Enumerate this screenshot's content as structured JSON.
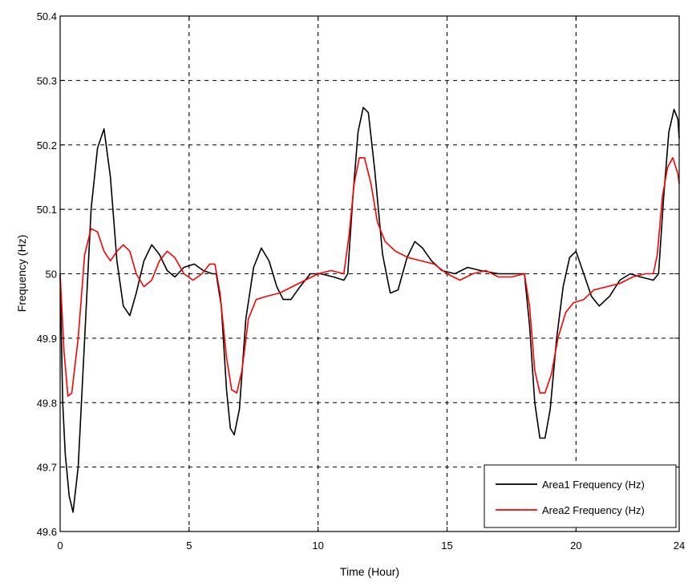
{
  "chart_data": {
    "type": "line",
    "xlabel": "Time (Hour)",
    "ylabel": "Frequency (Hz)",
    "xlim": [
      0,
      24
    ],
    "ylim": [
      49.6,
      50.4
    ],
    "xticks": [
      0,
      5,
      10,
      15,
      20,
      24
    ],
    "xtick_labels": [
      "0",
      "5",
      "10",
      "15",
      "20",
      "24"
    ],
    "yticks": [
      49.6,
      49.7,
      49.8,
      49.9,
      50.0,
      50.1,
      50.2,
      50.3,
      50.4
    ],
    "ytick_labels": [
      "49.6",
      "49.7",
      "49.8",
      "49.9",
      "50",
      "50.1",
      "50.2",
      "50.3",
      "50.4"
    ],
    "grid": true,
    "legend_position": "bottom-right",
    "series": [
      {
        "name": "Area1 Frequency (Hz)",
        "color": "#000000",
        "points": [
          [
            0.0,
            50.0
          ],
          [
            0.1,
            49.8
          ],
          [
            0.2,
            49.72
          ],
          [
            0.35,
            49.655
          ],
          [
            0.5,
            49.63
          ],
          [
            0.7,
            49.7
          ],
          [
            0.95,
            49.9
          ],
          [
            1.2,
            50.1
          ],
          [
            1.45,
            50.195
          ],
          [
            1.7,
            50.225
          ],
          [
            1.95,
            50.15
          ],
          [
            2.2,
            50.02
          ],
          [
            2.45,
            49.95
          ],
          [
            2.7,
            49.935
          ],
          [
            2.95,
            49.97
          ],
          [
            3.25,
            50.02
          ],
          [
            3.55,
            50.045
          ],
          [
            3.85,
            50.03
          ],
          [
            4.15,
            50.005
          ],
          [
            4.45,
            49.995
          ],
          [
            4.8,
            50.01
          ],
          [
            5.2,
            50.015
          ],
          [
            5.55,
            50.005
          ],
          [
            5.9,
            50.0
          ],
          [
            6.05,
            50.0
          ],
          [
            6.25,
            49.95
          ],
          [
            6.45,
            49.82
          ],
          [
            6.6,
            49.76
          ],
          [
            6.75,
            49.75
          ],
          [
            6.95,
            49.79
          ],
          [
            7.2,
            49.93
          ],
          [
            7.5,
            50.01
          ],
          [
            7.8,
            50.04
          ],
          [
            8.1,
            50.02
          ],
          [
            8.4,
            49.98
          ],
          [
            8.65,
            49.96
          ],
          [
            8.95,
            49.96
          ],
          [
            9.3,
            49.98
          ],
          [
            9.7,
            50.0
          ],
          [
            10.1,
            50.0
          ],
          [
            10.6,
            49.995
          ],
          [
            11.0,
            49.99
          ],
          [
            11.15,
            50.0
          ],
          [
            11.35,
            50.12
          ],
          [
            11.55,
            50.22
          ],
          [
            11.75,
            50.258
          ],
          [
            11.95,
            50.25
          ],
          [
            12.2,
            50.16
          ],
          [
            12.5,
            50.03
          ],
          [
            12.8,
            49.97
          ],
          [
            13.1,
            49.975
          ],
          [
            13.45,
            50.025
          ],
          [
            13.75,
            50.05
          ],
          [
            14.05,
            50.04
          ],
          [
            14.4,
            50.02
          ],
          [
            14.8,
            50.005
          ],
          [
            15.3,
            50.0
          ],
          [
            15.8,
            50.01
          ],
          [
            16.3,
            50.005
          ],
          [
            17.0,
            50.0
          ],
          [
            18.0,
            50.0
          ],
          [
            18.2,
            49.92
          ],
          [
            18.4,
            49.8
          ],
          [
            18.6,
            49.745
          ],
          [
            18.8,
            49.745
          ],
          [
            19.0,
            49.79
          ],
          [
            19.25,
            49.9
          ],
          [
            19.5,
            49.98
          ],
          [
            19.75,
            50.025
          ],
          [
            20.0,
            50.035
          ],
          [
            20.3,
            50.0
          ],
          [
            20.6,
            49.965
          ],
          [
            20.9,
            49.95
          ],
          [
            21.3,
            49.965
          ],
          [
            21.7,
            49.99
          ],
          [
            22.1,
            50.0
          ],
          [
            22.5,
            49.995
          ],
          [
            23.0,
            49.99
          ],
          [
            23.2,
            50.0
          ],
          [
            23.4,
            50.12
          ],
          [
            23.6,
            50.22
          ],
          [
            23.8,
            50.255
          ],
          [
            23.95,
            50.24
          ],
          [
            24.0,
            50.21
          ]
        ]
      },
      {
        "name": "Area2 Frequency (Hz)",
        "color": "#ff0000",
        "points": [
          [
            0.0,
            50.0
          ],
          [
            0.15,
            49.88
          ],
          [
            0.3,
            49.81
          ],
          [
            0.45,
            49.815
          ],
          [
            0.7,
            49.9
          ],
          [
            0.95,
            50.03
          ],
          [
            1.2,
            50.07
          ],
          [
            1.45,
            50.065
          ],
          [
            1.7,
            50.035
          ],
          [
            1.95,
            50.02
          ],
          [
            2.2,
            50.035
          ],
          [
            2.45,
            50.045
          ],
          [
            2.7,
            50.035
          ],
          [
            2.95,
            50.0
          ],
          [
            3.25,
            49.98
          ],
          [
            3.55,
            49.99
          ],
          [
            3.85,
            50.02
          ],
          [
            4.15,
            50.035
          ],
          [
            4.45,
            50.025
          ],
          [
            4.8,
            50.0
          ],
          [
            5.15,
            49.99
          ],
          [
            5.5,
            50.0
          ],
          [
            5.8,
            50.015
          ],
          [
            6.0,
            50.015
          ],
          [
            6.2,
            49.97
          ],
          [
            6.45,
            49.87
          ],
          [
            6.65,
            49.82
          ],
          [
            6.85,
            49.815
          ],
          [
            7.05,
            49.85
          ],
          [
            7.3,
            49.93
          ],
          [
            7.6,
            49.96
          ],
          [
            8.0,
            49.965
          ],
          [
            8.5,
            49.97
          ],
          [
            9.0,
            49.98
          ],
          [
            9.5,
            49.99
          ],
          [
            10.0,
            50.0
          ],
          [
            10.5,
            50.005
          ],
          [
            11.0,
            50.0
          ],
          [
            11.2,
            50.06
          ],
          [
            11.4,
            50.14
          ],
          [
            11.6,
            50.18
          ],
          [
            11.8,
            50.18
          ],
          [
            12.05,
            50.14
          ],
          [
            12.3,
            50.08
          ],
          [
            12.6,
            50.05
          ],
          [
            13.0,
            50.035
          ],
          [
            13.5,
            50.025
          ],
          [
            14.0,
            50.02
          ],
          [
            14.5,
            50.015
          ],
          [
            15.0,
            50.0
          ],
          [
            15.5,
            49.99
          ],
          [
            16.0,
            50.0
          ],
          [
            16.5,
            50.005
          ],
          [
            17.0,
            49.995
          ],
          [
            17.5,
            49.995
          ],
          [
            18.0,
            50.0
          ],
          [
            18.2,
            49.95
          ],
          [
            18.4,
            49.85
          ],
          [
            18.6,
            49.815
          ],
          [
            18.8,
            49.815
          ],
          [
            19.05,
            49.845
          ],
          [
            19.3,
            49.9
          ],
          [
            19.6,
            49.94
          ],
          [
            19.9,
            49.955
          ],
          [
            20.3,
            49.96
          ],
          [
            20.7,
            49.975
          ],
          [
            21.2,
            49.98
          ],
          [
            21.7,
            49.985
          ],
          [
            22.2,
            49.995
          ],
          [
            22.7,
            50.0
          ],
          [
            23.0,
            50.0
          ],
          [
            23.15,
            50.03
          ],
          [
            23.35,
            50.12
          ],
          [
            23.55,
            50.165
          ],
          [
            23.75,
            50.18
          ],
          [
            23.95,
            50.155
          ],
          [
            24.0,
            50.14
          ]
        ]
      }
    ]
  }
}
